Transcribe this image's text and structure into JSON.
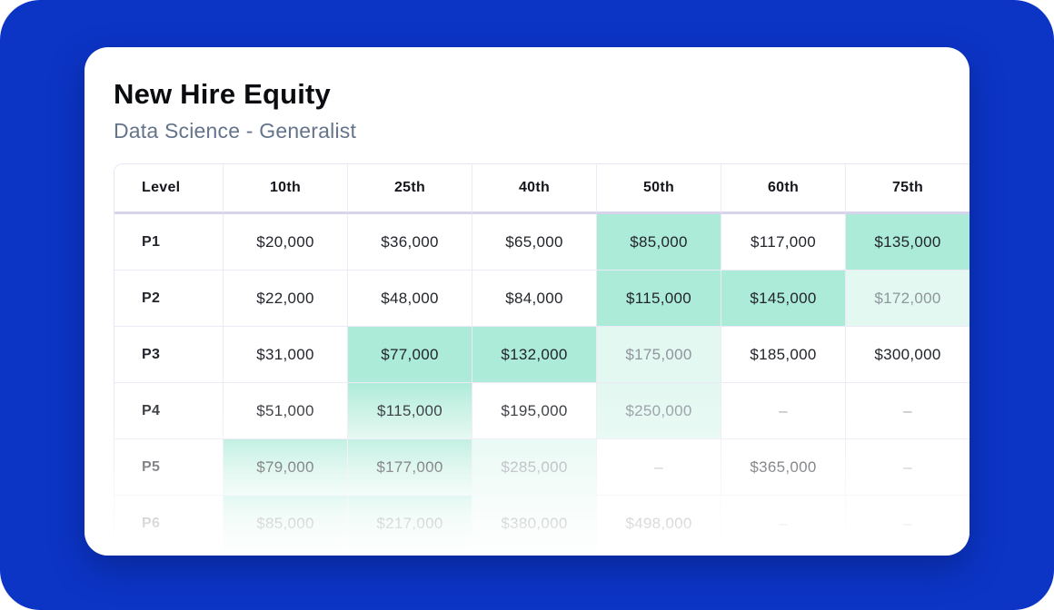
{
  "theme": {
    "page_background": "#0C35C6",
    "card_background": "#FFFFFF",
    "highlight_strong": "#ACEBD8",
    "highlight_light": "#E2F8F0",
    "border_color": "#ECEAF6",
    "header_divider": "#D8D3EC",
    "muted_text": "#8F959D",
    "subtitle_color": "#64748B"
  },
  "card": {
    "title": "New Hire Equity",
    "subtitle": "Data Science - Generalist"
  },
  "chart_data": {
    "type": "table",
    "title": "New Hire Equity",
    "subtitle": "Data Science - Generalist",
    "columns": [
      "Level",
      "10th",
      "25th",
      "40th",
      "50th",
      "60th",
      "75th"
    ],
    "rows": [
      {
        "level": "P1",
        "cells": [
          {
            "text": "$20,000",
            "bg": "none",
            "muted": false,
            "dash": false
          },
          {
            "text": "$36,000",
            "bg": "none",
            "muted": false,
            "dash": false
          },
          {
            "text": "$65,000",
            "bg": "none",
            "muted": false,
            "dash": false
          },
          {
            "text": "$85,000",
            "bg": "strong",
            "muted": false,
            "dash": false
          },
          {
            "text": "$117,000",
            "bg": "none",
            "muted": false,
            "dash": false
          },
          {
            "text": "$135,000",
            "bg": "strong",
            "muted": false,
            "dash": false
          }
        ]
      },
      {
        "level": "P2",
        "cells": [
          {
            "text": "$22,000",
            "bg": "none",
            "muted": false,
            "dash": false
          },
          {
            "text": "$48,000",
            "bg": "none",
            "muted": false,
            "dash": false
          },
          {
            "text": "$84,000",
            "bg": "none",
            "muted": false,
            "dash": false
          },
          {
            "text": "$115,000",
            "bg": "strong",
            "muted": false,
            "dash": false
          },
          {
            "text": "$145,000",
            "bg": "strong",
            "muted": false,
            "dash": false
          },
          {
            "text": "$172,000",
            "bg": "light",
            "muted": true,
            "dash": false
          }
        ]
      },
      {
        "level": "P3",
        "cells": [
          {
            "text": "$31,000",
            "bg": "none",
            "muted": false,
            "dash": false
          },
          {
            "text": "$77,000",
            "bg": "strong",
            "muted": false,
            "dash": false
          },
          {
            "text": "$132,000",
            "bg": "strong",
            "muted": false,
            "dash": false
          },
          {
            "text": "$175,000",
            "bg": "light",
            "muted": true,
            "dash": false
          },
          {
            "text": "$185,000",
            "bg": "none",
            "muted": false,
            "dash": false
          },
          {
            "text": "$300,000",
            "bg": "none",
            "muted": false,
            "dash": false
          }
        ]
      },
      {
        "level": "P4",
        "cells": [
          {
            "text": "$51,000",
            "bg": "none",
            "muted": false,
            "dash": false
          },
          {
            "text": "$115,000",
            "bg": "mid",
            "muted": false,
            "dash": false
          },
          {
            "text": "$195,000",
            "bg": "none",
            "muted": false,
            "dash": false
          },
          {
            "text": "$250,000",
            "bg": "light",
            "muted": true,
            "dash": false
          },
          {
            "text": "–",
            "bg": "none",
            "muted": false,
            "dash": true
          },
          {
            "text": "–",
            "bg": "none",
            "muted": false,
            "dash": true
          }
        ]
      },
      {
        "level": "P5",
        "cells": [
          {
            "text": "$79,000",
            "bg": "mid",
            "muted": false,
            "dash": false
          },
          {
            "text": "$177,000",
            "bg": "mid",
            "muted": false,
            "dash": false
          },
          {
            "text": "$285,000",
            "bg": "light",
            "muted": true,
            "dash": false
          },
          {
            "text": "–",
            "bg": "none",
            "muted": false,
            "dash": true
          },
          {
            "text": "$365,000",
            "bg": "none",
            "muted": false,
            "dash": false
          },
          {
            "text": "–",
            "bg": "none",
            "muted": false,
            "dash": true
          }
        ]
      },
      {
        "level": "P6",
        "cells": [
          {
            "text": "$85,000",
            "bg": "mid",
            "muted": false,
            "dash": false
          },
          {
            "text": "$217,000",
            "bg": "mid",
            "muted": false,
            "dash": false
          },
          {
            "text": "$380,000",
            "bg": "light",
            "muted": false,
            "dash": false
          },
          {
            "text": "$498,000",
            "bg": "none",
            "muted": false,
            "dash": false
          },
          {
            "text": "–",
            "bg": "none",
            "muted": false,
            "dash": true
          },
          {
            "text": "–",
            "bg": "none",
            "muted": false,
            "dash": true
          }
        ]
      }
    ]
  }
}
